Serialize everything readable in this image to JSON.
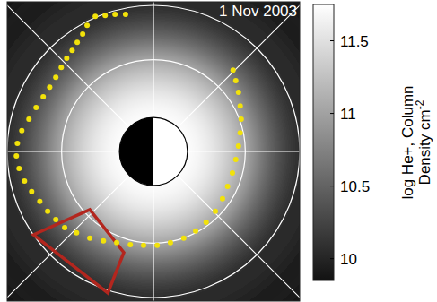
{
  "chart_data": {
    "type": "heatmap",
    "title": "1 Nov 2003",
    "tick_labels": false,
    "xlim": [
      -4.3,
      4.3
    ],
    "ylim": [
      -4.4,
      4.4
    ],
    "grid": true,
    "grid_radii": [
      2.7,
      4.3
    ],
    "density_profile": {
      "r": [
        6,
        5,
        4,
        3.5,
        3,
        2.5,
        2,
        1.5,
        1
      ],
      "values": [
        9.95,
        10.05,
        10.3,
        10.6,
        11.0,
        11.3,
        11.55,
        11.7,
        11.75
      ]
    },
    "plasmapause": {
      "color": "#f2e20a",
      "marker": "circle",
      "x": [
        -0.82,
        -1.13,
        -1.42,
        -1.71,
        -1.95,
        -2.08,
        -2.24,
        -2.39,
        -2.55,
        -2.71,
        -2.87,
        -3.05,
        -3.24,
        -3.45,
        -3.66,
        -3.87,
        -4.0,
        -4.03,
        -3.95,
        -3.79,
        -3.58,
        -3.34,
        -3.11,
        -2.87,
        -2.61,
        -2.26,
        -1.87,
        -1.47,
        -1.08,
        -0.68,
        -0.29,
        0.11,
        0.5,
        0.89,
        1.24,
        1.55,
        1.82,
        2.03,
        2.18,
        2.32,
        2.42,
        2.5,
        2.55,
        2.58,
        2.55,
        2.5,
        2.42,
        2.34
      ],
      "y": [
        4.03,
        4.03,
        4.0,
        3.97,
        3.71,
        3.45,
        3.21,
        2.97,
        2.74,
        2.47,
        2.18,
        1.89,
        1.61,
        1.29,
        0.95,
        0.61,
        0.24,
        -0.13,
        -0.5,
        -0.87,
        -1.18,
        -1.47,
        -1.76,
        -2.0,
        -2.24,
        -2.39,
        -2.55,
        -2.63,
        -2.68,
        -2.74,
        -2.76,
        -2.76,
        -2.68,
        -2.55,
        -2.34,
        -2.08,
        -1.76,
        -1.39,
        -1.03,
        -0.63,
        -0.24,
        0.16,
        0.55,
        0.95,
        1.34,
        1.74,
        2.08,
        2.39
      ]
    },
    "region": {
      "color": "#b3261e",
      "x": [
        -3.53,
        -1.87,
        -0.87,
        -1.34
      ],
      "y": [
        -2.45,
        -1.71,
        -2.97,
        -4.16
      ]
    },
    "colorbar": {
      "label": [
        "log He+, Column",
        {
          "text": "Density cm",
          "superscript": "-2"
        }
      ],
      "range": [
        9.85,
        11.75
      ],
      "ticks": [
        10,
        10.5,
        11,
        11.5
      ]
    }
  }
}
